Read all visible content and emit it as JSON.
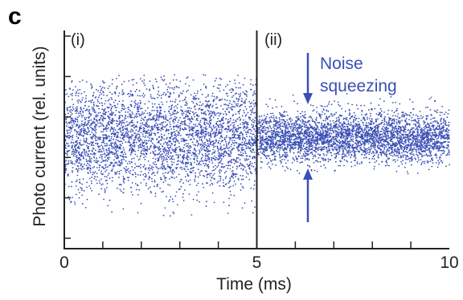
{
  "panel_letter": "c",
  "colors": {
    "points": "#3a4fb5",
    "axis": "#222222",
    "annotation": "#3a4fb5"
  },
  "chart_data": {
    "type": "scatter",
    "xlabel": "Time (ms)",
    "ylabel": "Photo current (rel. units)",
    "xlim": [
      0,
      10
    ],
    "x_ticks_labeled": [
      0,
      5,
      10
    ],
    "x_tick_labels": [
      "0",
      "5",
      "10"
    ],
    "x_minor_ticks": [
      1,
      2,
      3,
      4,
      6,
      7,
      8,
      9
    ],
    "y_tick_count": 6,
    "grid": false,
    "legend": "none",
    "divider_x": 5,
    "regions": [
      {
        "label": "(i)",
        "x_start": 0,
        "x_end": 5,
        "relative_noise_std": 1.0
      },
      {
        "label": "(ii)",
        "x_start": 5,
        "x_end": 10,
        "relative_noise_std": 0.45
      }
    ],
    "annotation": {
      "text_line1": "Noise",
      "text_line2": "squeezing",
      "arrows": "pointing inward toward squeezed band at x≈6.4"
    }
  }
}
